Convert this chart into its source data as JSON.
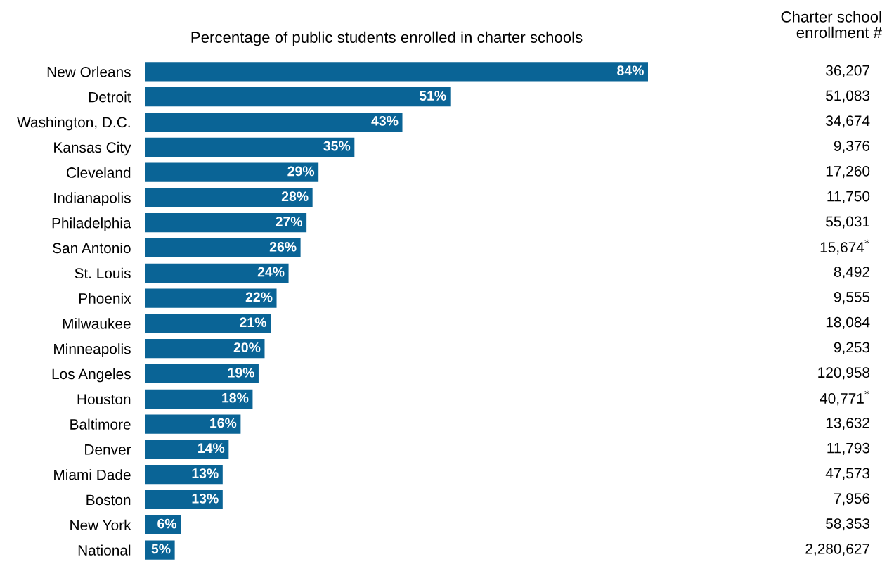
{
  "chart_data": {
    "type": "bar",
    "orientation": "horizontal",
    "title": "Percentage of public students enrolled in charter schools",
    "categories": [
      "New Orleans",
      "Detroit",
      "Washington, D.C.",
      "Kansas City",
      "Cleveland",
      "Indianapolis",
      "Philadelphia",
      "San Antonio",
      "St. Louis",
      "Phoenix",
      "Milwaukee",
      "Minneapolis",
      "Los Angeles",
      "Houston",
      "Baltimore",
      "Denver",
      "Miami Dade",
      "Boston",
      "New York",
      "National"
    ],
    "values": [
      84,
      51,
      43,
      35,
      29,
      28,
      27,
      26,
      24,
      22,
      21,
      20,
      19,
      18,
      16,
      14,
      13,
      13,
      6,
      5
    ],
    "value_labels": [
      "84%",
      "51%",
      "43%",
      "35%",
      "29%",
      "28%",
      "27%",
      "26%",
      "24%",
      "22%",
      "21%",
      "20%",
      "19%",
      "18%",
      "16%",
      "14%",
      "13%",
      "13%",
      "6%",
      "5%"
    ],
    "color": "#0a6496",
    "annotations": [
      "Charter school\nenrollment #",
      "36,207",
      "51,083",
      "34,674",
      "9,376",
      "17,260",
      "11,750",
      "55,031",
      "15,674$^{*}$",
      "8,492",
      "9,555",
      "18,084",
      "9,253",
      "120,958",
      "40,771$^{*}$",
      "13,632",
      "11,793",
      "47,573",
      "7,956",
      "58,353",
      "2,280,627"
    ],
    "grid": false,
    "legend": false
  }
}
